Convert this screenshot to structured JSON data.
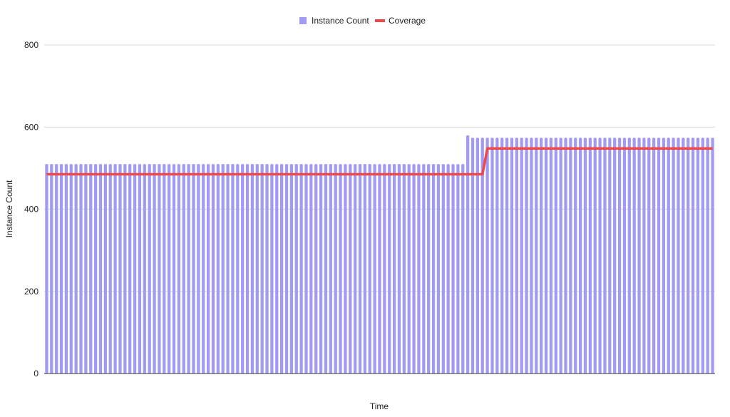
{
  "chart_data": {
    "type": "bar",
    "xlabel": "Time",
    "ylabel": "Instance Count",
    "ylim": [
      0,
      800
    ],
    "yticks": [
      0,
      200,
      400,
      600,
      800
    ],
    "grid": true,
    "legend_position": "top-center",
    "colors": {
      "bars": "#a29bf4",
      "line": "#f04848",
      "grid": "#d9d9d9",
      "axis": "#333333"
    },
    "series": [
      {
        "name": "Instance Count",
        "type": "bar",
        "segments": [
          {
            "count": 86,
            "value": 510
          },
          {
            "count": 1,
            "value": 580
          },
          {
            "count": 50,
            "value": 574
          }
        ]
      },
      {
        "name": "Coverage",
        "type": "line",
        "segments": [
          {
            "count": 90,
            "value": 485
          },
          {
            "count": 47,
            "value": 548
          }
        ]
      }
    ]
  }
}
